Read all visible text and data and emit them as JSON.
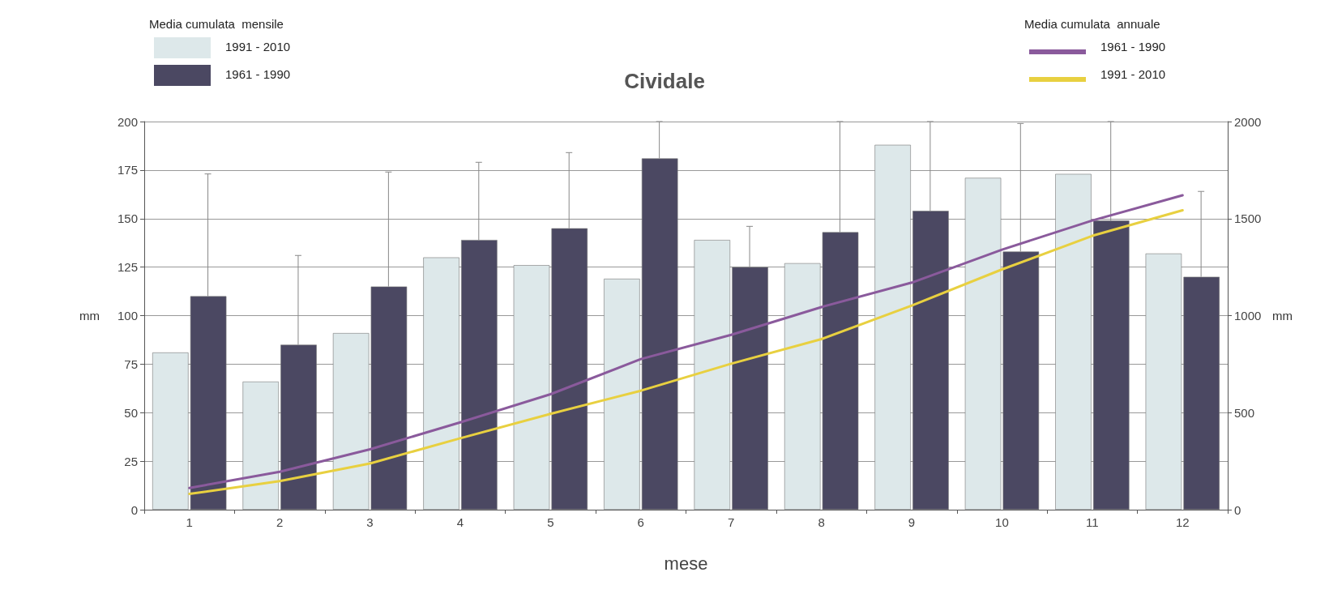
{
  "chart_data": {
    "type": "bar",
    "title": "Cividale",
    "xlabel": "mese",
    "ylabel": "mm",
    "y2label": "mm",
    "categories": [
      "1",
      "2",
      "3",
      "4",
      "5",
      "6",
      "7",
      "8",
      "9",
      "10",
      "11",
      "12"
    ],
    "series": [
      {
        "name": "1991 - 2010",
        "color": "#dde8ea",
        "values": [
          81,
          66,
          91,
          130,
          126,
          119,
          139,
          127,
          188,
          171,
          173,
          132
        ]
      },
      {
        "name": "1961 - 1990",
        "color": "#4b4862",
        "values": [
          110,
          85,
          115,
          139,
          145,
          181,
          125,
          143,
          154,
          133,
          149,
          120
        ],
        "errors": [
          [
            110,
            173
          ],
          [
            85,
            131
          ],
          [
            115,
            174
          ],
          [
            139,
            179
          ],
          [
            145,
            184
          ],
          [
            181,
            200
          ],
          [
            125,
            146
          ],
          [
            143,
            200
          ],
          [
            154,
            200
          ],
          [
            133,
            199
          ],
          [
            149,
            200
          ],
          [
            120,
            164
          ]
        ]
      },
      {
        "name": "1961 - 1990",
        "type": "line",
        "axis": "y2",
        "color": "#8a5a9c",
        "values": [
          112,
          195,
          311,
          450,
          595,
          776,
          901,
          1044,
          1170,
          1340,
          1490,
          1620
        ]
      },
      {
        "name": "1991 - 2010",
        "type": "line",
        "axis": "y2",
        "color": "#e8d040",
        "values": [
          81,
          147,
          238,
          368,
          494,
          613,
          752,
          879,
          1052,
          1238,
          1411,
          1543
        ]
      }
    ],
    "annotations": [
      "Media cumulata  mensile",
      "Media cumulata  annuale"
    ],
    "ylim": [
      0,
      200
    ],
    "yticks": [
      0,
      25,
      50,
      75,
      100,
      125,
      150,
      175,
      200
    ],
    "y2lim": [
      0,
      2000
    ],
    "y2ticks": [
      0,
      500,
      1000,
      1500,
      2000
    ],
    "grid": "y",
    "legend": "top",
    "marker": "none",
    "line_style": "solid"
  }
}
